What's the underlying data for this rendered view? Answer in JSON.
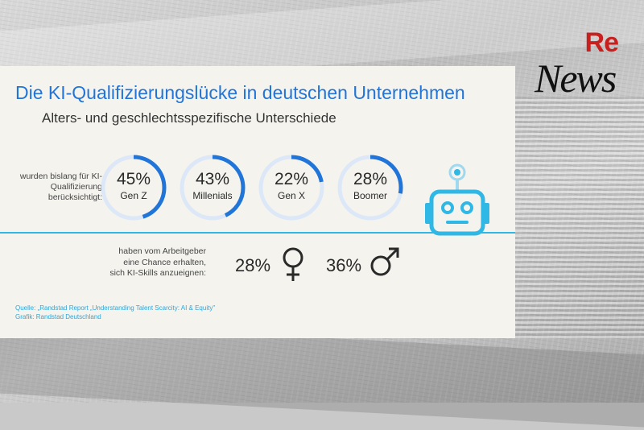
{
  "title": "Die KI-Qualifizierungslücke in deutschen Unternehmen",
  "subtitle": "Alters- und geschlechtsspezifische Unterschiede",
  "logo": {
    "text_top": "Re",
    "text_bottom": "News"
  },
  "colors": {
    "accent_blue": "#2175d9",
    "ring_light": "#dce8f7",
    "line_cyan": "#2fb7e6",
    "text_dark": "#2a2a2a",
    "card_bg": "#f4f3ee"
  },
  "icons": [
    "female-icon",
    "male-icon",
    "robot-icon"
  ],
  "chart_data": [
    {
      "type": "donut",
      "row_label": "wurden bislang für KI-Qualifizierung berücksichtigt:",
      "categories": [
        "Gen Z",
        "Millenials",
        "Gen X",
        "Boomer"
      ],
      "values": [
        45,
        43,
        22,
        28
      ],
      "value_labels": [
        "45%",
        "43%",
        "22%",
        "28%"
      ],
      "max": 100
    },
    {
      "type": "table",
      "row_label": "haben vom Arbeitgeber eine Chance erhalten, sich KI-Skills anzueignen:",
      "categories": [
        "female-icon",
        "male-icon"
      ],
      "values": [
        28,
        36
      ],
      "value_labels": [
        "28%",
        "36%"
      ]
    }
  ],
  "source": {
    "line1": "Quelle: „Randstad Report „Understanding Talent Scarcity: AI & Equity\"",
    "line2": "Grafik: Randstad Deutschland"
  }
}
